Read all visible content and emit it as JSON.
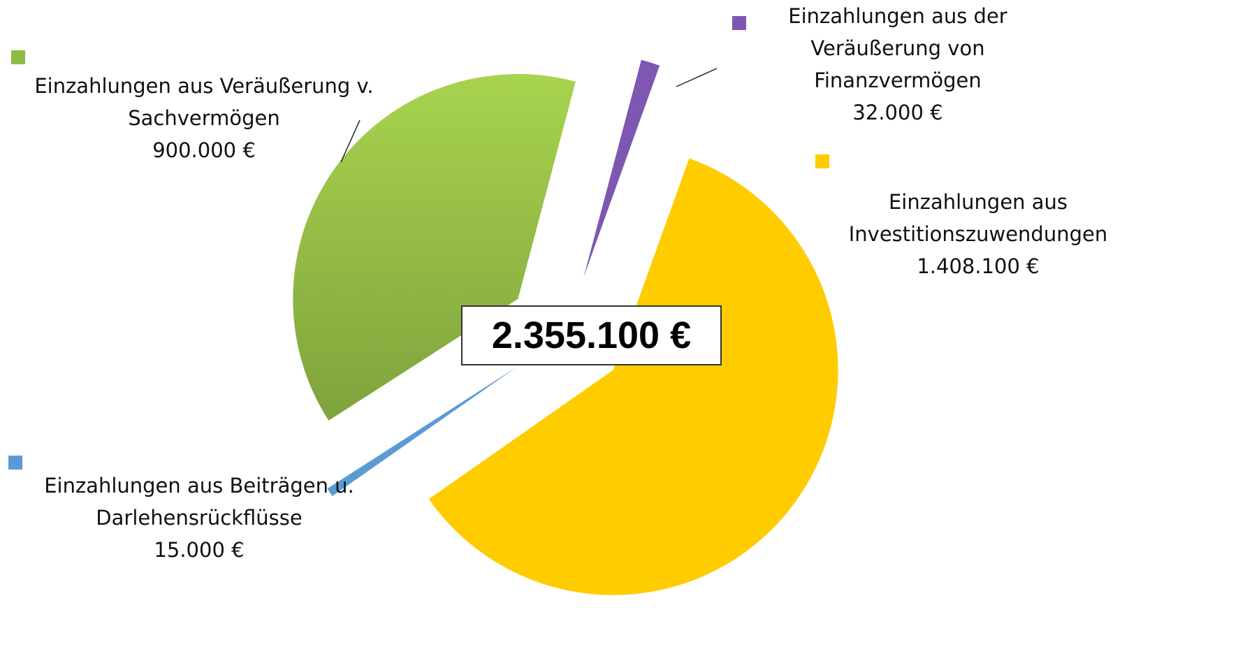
{
  "chart_data": {
    "type": "pie",
    "categories": [
      "Einzahlungen aus Veräußerung v. Sachvermögen",
      "Einzahlungen aus der Veräußerung von Finanzvermögen",
      "Einzahlungen aus Investitionszuwendungen",
      "Einzahlungen aus Beiträgen u. Darlehensrückflüsse"
    ],
    "values": [
      900000,
      32000,
      1408100,
      15000
    ],
    "value_labels": [
      "900.000 €",
      "32.000 €",
      "1.408.100 €",
      "15.000 €"
    ],
    "colors": [
      "#8fbb45",
      "#7e57b3",
      "#ffcc00",
      "#5b9bd5"
    ],
    "total_label": "2.355.100 €"
  }
}
